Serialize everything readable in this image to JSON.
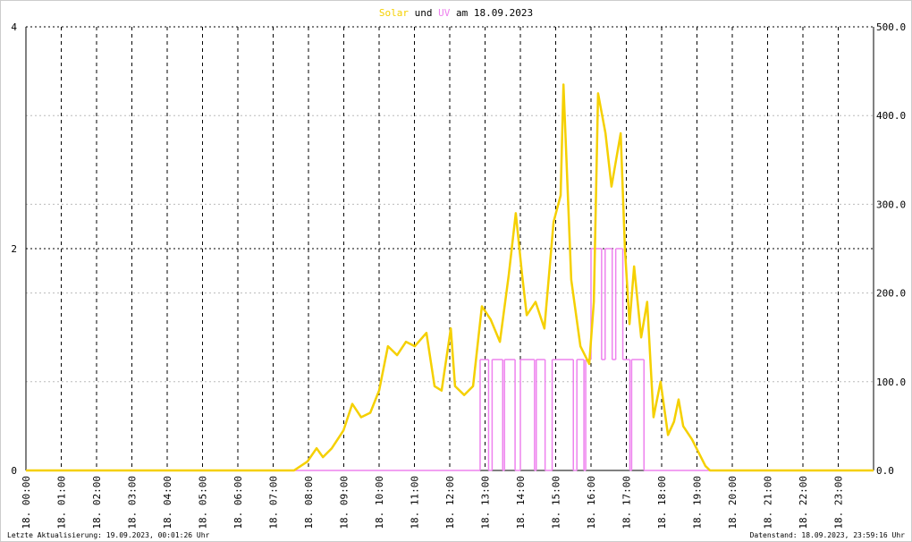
{
  "chart_data": {
    "type": "line",
    "title_parts": [
      "und",
      "am 18.09.2023"
    ],
    "footer_left": "Letzte Aktualisierung: 19.09.2023, 00:01:26 Uhr",
    "footer_right": "Datenstand: 18.09.2023, 23:59:16 Uhr",
    "xlim": [
      0,
      24
    ],
    "xticks": [
      {
        "value": 0,
        "label": "18. 00:00"
      },
      {
        "value": 1,
        "label": "18. 01:00"
      },
      {
        "value": 2,
        "label": "18. 02:00"
      },
      {
        "value": 3,
        "label": "18. 03:00"
      },
      {
        "value": 4,
        "label": "18. 04:00"
      },
      {
        "value": 5,
        "label": "18. 05:00"
      },
      {
        "value": 6,
        "label": "18. 06:00"
      },
      {
        "value": 7,
        "label": "18. 07:00"
      },
      {
        "value": 8,
        "label": "18. 08:00"
      },
      {
        "value": 9,
        "label": "18. 09:00"
      },
      {
        "value": 10,
        "label": "18. 10:00"
      },
      {
        "value": 11,
        "label": "18. 11:00"
      },
      {
        "value": 12,
        "label": "18. 12:00"
      },
      {
        "value": 13,
        "label": "18. 13:00"
      },
      {
        "value": 14,
        "label": "18. 14:00"
      },
      {
        "value": 15,
        "label": "18. 15:00"
      },
      {
        "value": 16,
        "label": "18. 16:00"
      },
      {
        "value": 17,
        "label": "18. 17:00"
      },
      {
        "value": 18,
        "label": "18. 18:00"
      },
      {
        "value": 19,
        "label": "18. 19:00"
      },
      {
        "value": 20,
        "label": "18. 20:00"
      },
      {
        "value": 21,
        "label": "18. 21:00"
      },
      {
        "value": 22,
        "label": "18. 22:00"
      },
      {
        "value": 23,
        "label": "18. 23:00"
      }
    ],
    "ylim": [
      0,
      4
    ],
    "yticks": [
      0,
      2,
      4
    ],
    "y2lim": [
      0,
      500
    ],
    "y2ticks": [
      {
        "value": 0,
        "label": "0.0"
      },
      {
        "value": 100,
        "label": "100.0"
      },
      {
        "value": 200,
        "label": "200.0"
      },
      {
        "value": 300,
        "label": "300.0"
      },
      {
        "value": 400,
        "label": "400.0"
      },
      {
        "value": 500,
        "label": "500.0"
      }
    ],
    "grid": true,
    "series": [
      {
        "name": "Solar",
        "color": "#f5d000",
        "axis": "y2",
        "x": [
          0,
          7.59,
          7.97,
          8.23,
          8.41,
          8.66,
          8.99,
          9.24,
          9.49,
          9.75,
          10.0,
          10.25,
          10.51,
          10.76,
          11.01,
          11.34,
          11.57,
          11.77,
          12.03,
          12.15,
          12.41,
          12.66,
          12.91,
          13.16,
          13.42,
          13.67,
          13.87,
          14.05,
          14.18,
          14.43,
          14.68,
          14.94,
          15.14,
          15.22,
          15.44,
          15.7,
          15.95,
          16.08,
          16.2,
          16.41,
          16.58,
          16.84,
          16.96,
          17.09,
          17.22,
          17.42,
          17.59,
          17.77,
          17.97,
          18.18,
          18.35,
          18.48,
          18.61,
          18.86,
          19.24,
          19.37,
          24
        ],
        "values": [
          0,
          0,
          10,
          25,
          15,
          25,
          45,
          75,
          60,
          65,
          90,
          140,
          130,
          145,
          140,
          155,
          95,
          90,
          160,
          95,
          85,
          95,
          185,
          170,
          145,
          220,
          290,
          220,
          175,
          190,
          160,
          280,
          310,
          435,
          215,
          140,
          120,
          190,
          425,
          380,
          320,
          380,
          250,
          165,
          230,
          150,
          190,
          60,
          100,
          40,
          55,
          80,
          50,
          35,
          5,
          0,
          0
        ]
      },
      {
        "name": "UV",
        "color": "#ee82ee",
        "x": [
          0,
          12.86,
          13.1,
          13.2,
          13.5,
          13.55,
          13.85,
          14.0,
          14.4,
          14.45,
          14.7,
          14.9,
          15.5,
          15.6,
          15.8,
          15.85,
          16.0,
          16.3,
          16.4,
          16.6,
          16.7,
          16.9,
          17.1,
          17.15,
          17.5,
          24
        ],
        "values": [
          0,
          1,
          0,
          1,
          0,
          1,
          0,
          1,
          0,
          1,
          0,
          1,
          0,
          1,
          0,
          1,
          2,
          1,
          2,
          1,
          2,
          1,
          0,
          1,
          0,
          0
        ]
      }
    ]
  }
}
